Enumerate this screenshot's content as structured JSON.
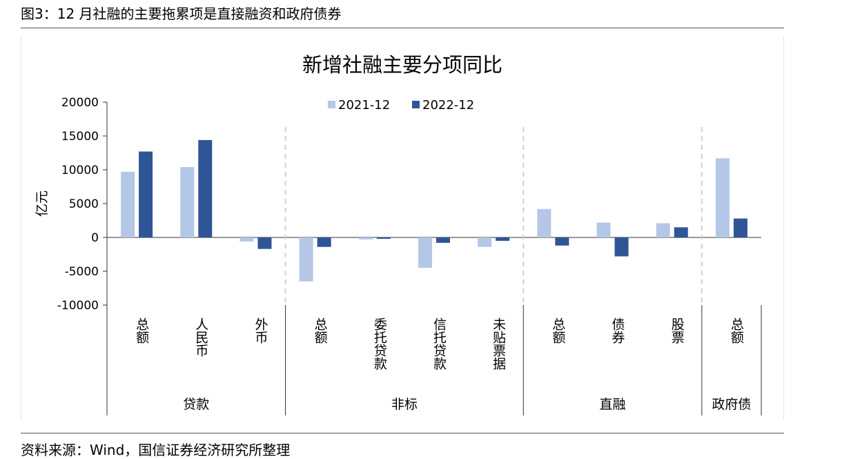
{
  "caption": "图3：12 月社融的主要拖累项是直接融资和政府债券",
  "source": "资料来源：Wind，国信证券经济研究所整理",
  "chart_data": {
    "type": "bar",
    "title": "新增社融主要分项同比",
    "ylabel": "亿元",
    "ylim": [
      -10000,
      20000
    ],
    "yticks": [
      20000,
      15000,
      10000,
      5000,
      0,
      -5000,
      -10000
    ],
    "categories": [
      "总额",
      "人民币",
      "外币",
      "总额",
      "委托贷款",
      "信托贷款",
      "未贴票据",
      "总额",
      "债券",
      "股票",
      "总额"
    ],
    "groups": [
      {
        "label": "贷款",
        "count": 3
      },
      {
        "label": "非标",
        "count": 4
      },
      {
        "label": "直融",
        "count": 3
      },
      {
        "label": "政府债",
        "count": 1
      }
    ],
    "series": [
      {
        "name": "2021-12",
        "color": "#b4c7e7",
        "values": [
          9700,
          10400,
          -600,
          -6500,
          -300,
          -4500,
          -1400,
          4200,
          2200,
          2100,
          11700
        ]
      },
      {
        "name": "2022-12",
        "color": "#2f5597",
        "values": [
          12700,
          14400,
          -1700,
          -1400,
          -200,
          -800,
          -500,
          -1200,
          -2800,
          1500,
          2800
        ]
      }
    ],
    "legend_position": "top-center",
    "grid": false
  }
}
